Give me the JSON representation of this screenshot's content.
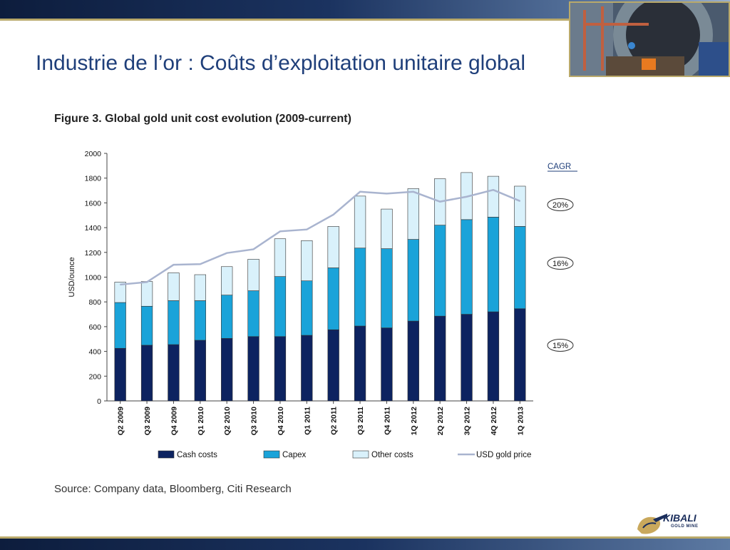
{
  "slide": {
    "title": "Industrie de l’or : Coûts d’exploitation unitaire global",
    "figure_title": "Figure 3. Global gold unit cost evolution (2009-current)",
    "source": "Source: Company data, Bloomberg, Citi Research"
  },
  "logo": {
    "name": "KIBALI",
    "sub": "GOLD MINE"
  },
  "colors": {
    "cash": "#0d2360",
    "capex": "#1aa3d9",
    "other": "#d9f1fb",
    "price": "#a9b4cf",
    "title": "#1f3f7a",
    "brand": "#1b2e5c"
  },
  "chart_data": {
    "type": "bar",
    "stacked": true,
    "categories": [
      "Q2 2009",
      "Q3 2009",
      "Q4 2009",
      "Q1 2010",
      "Q2 2010",
      "Q3 2010",
      "Q4 2010",
      "Q1 2011",
      "Q2 2011",
      "Q3 2011",
      "Q4 2011",
      "1Q 2012",
      "2Q 2012",
      "3Q 2012",
      "4Q 2012",
      "1Q 2013"
    ],
    "series": [
      {
        "name": "Cash costs",
        "values": [
          425,
          450,
          455,
          490,
          505,
          520,
          520,
          530,
          575,
          605,
          590,
          645,
          685,
          700,
          720,
          745
        ]
      },
      {
        "name": "Capex",
        "values": [
          370,
          315,
          355,
          320,
          350,
          370,
          485,
          440,
          500,
          630,
          640,
          660,
          735,
          765,
          765,
          665
        ]
      },
      {
        "name": "Other costs",
        "values": [
          165,
          200,
          225,
          210,
          230,
          255,
          305,
          325,
          335,
          420,
          320,
          410,
          375,
          380,
          330,
          325
        ]
      }
    ],
    "line_series": {
      "name": "USD gold price",
      "values": [
        940,
        960,
        1100,
        1105,
        1195,
        1225,
        1370,
        1385,
        1505,
        1690,
        1675,
        1690,
        1610,
        1650,
        1705,
        1615
      ]
    },
    "ylabel": "USD/ounce",
    "ylim": [
      0,
      2000
    ],
    "yticks": [
      0,
      200,
      400,
      600,
      800,
      1000,
      1200,
      1400,
      1600,
      1800,
      2000
    ],
    "legend": [
      "Cash costs",
      "Capex",
      "Other costs",
      "USD gold price"
    ],
    "legend_position": "bottom",
    "grid": false,
    "cagr": {
      "heading": "CAGR",
      "labels": [
        "20%",
        "16%",
        "15%"
      ]
    }
  }
}
